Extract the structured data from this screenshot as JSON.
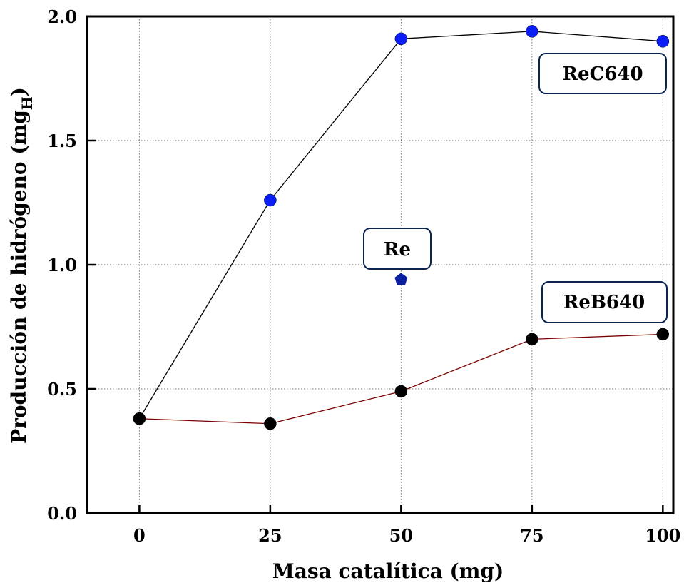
{
  "chart_data": {
    "type": "scatter",
    "xlabel": "Masa catalítica (mg)",
    "ylabel": {
      "main": "Producción de hidrógeno (mg",
      "subscript": "H",
      "close": ")"
    },
    "xlim": [
      -10,
      102
    ],
    "ylim": [
      0,
      2.0
    ],
    "x_ticks": [
      0,
      25,
      50,
      75,
      100
    ],
    "x_tick_labels": [
      "0",
      "25",
      "50",
      "75",
      "100"
    ],
    "y_ticks": [
      0,
      0.5,
      1.0,
      1.5,
      2.0
    ],
    "y_tick_labels": [
      "0.0",
      "0.5",
      "1.0",
      "1.5",
      "2.0"
    ],
    "grid": true,
    "series": [
      {
        "label": "ReC640",
        "x": [
          0,
          25,
          50,
          75,
          100
        ],
        "y": [
          0.38,
          1.26,
          1.91,
          1.94,
          1.9
        ],
        "marker": "circle",
        "marker_color": "#0a1ef5",
        "line_color": "#000000"
      },
      {
        "label": "ReB640",
        "x": [
          0,
          25,
          50,
          75,
          100
        ],
        "y": [
          0.38,
          0.36,
          0.49,
          0.7,
          0.72
        ],
        "marker": "circle",
        "marker_color": "#000000",
        "line_color": "#7a0000"
      },
      {
        "label": "Re",
        "x": [
          50
        ],
        "y": [
          0.94
        ],
        "marker": "pentagon",
        "marker_color": "#0a1ea0",
        "line_color": null
      }
    ],
    "annotations": [
      "ReC640",
      "Re",
      "ReB640"
    ]
  }
}
